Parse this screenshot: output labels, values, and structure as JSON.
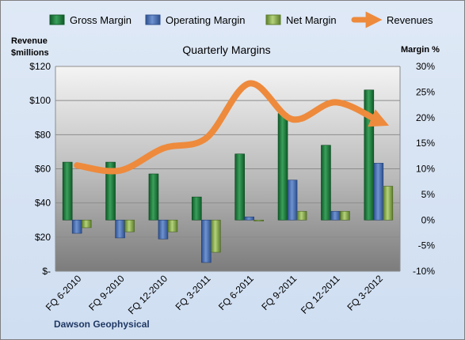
{
  "chart_data": {
    "type": "bar",
    "title": "Quarterly Margins",
    "categories": [
      "FQ 6-2010",
      "FQ 9-2010",
      "FQ 12-2010",
      "FQ 3-2011",
      "FQ 6-2011",
      "FQ 9-2011",
      "FQ 12-2011",
      "FQ 3-2012"
    ],
    "left_axis": {
      "label_line1": "Revenue",
      "label_line2": "$millions",
      "ylim": [
        0,
        120
      ],
      "ticks": [
        "$-",
        "$20",
        "$40",
        "$60",
        "$80",
        "$100",
        "$120"
      ]
    },
    "right_axis": {
      "label": "Margin %",
      "ylim": [
        -10,
        30
      ],
      "ticks": [
        "-10%",
        "-5%",
        "0%",
        "5%",
        "10%",
        "15%",
        "20%",
        "25%",
        "30%"
      ]
    },
    "series": [
      {
        "name": "Gross Margin",
        "axis": "right",
        "color": "#1e7a3c",
        "values": [
          11.3,
          11.3,
          9.0,
          4.5,
          12.9,
          20.8,
          14.6,
          25.4
        ]
      },
      {
        "name": "Operating Margin",
        "axis": "right",
        "color": "#4a6fb0",
        "values": [
          -2.6,
          -3.5,
          -3.7,
          -8.3,
          0.6,
          7.8,
          1.7,
          11.1
        ]
      },
      {
        "name": "Net Margin",
        "axis": "right",
        "color": "#8fb050",
        "values": [
          -1.5,
          -2.3,
          -2.3,
          -6.3,
          -0.2,
          1.7,
          1.7,
          6.6
        ]
      },
      {
        "name": "Revenues",
        "axis": "left",
        "type": "line",
        "color": "#ee8a3c",
        "values": [
          62,
          59,
          72,
          78,
          110,
          89,
          99,
          88
        ]
      }
    ],
    "legend_position": "top",
    "grid": true,
    "footer": "Dawson Geophysical"
  }
}
